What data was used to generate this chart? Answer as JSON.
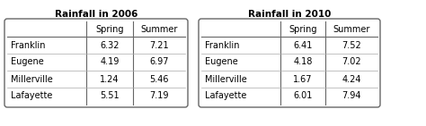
{
  "title_left": "Rainfall in 2006",
  "title_right": "Rainfall in 2010",
  "cities": [
    "Franklin",
    "Eugene",
    "Millerville",
    "Lafayette"
  ],
  "col_headers": [
    "Spring",
    "Summer"
  ],
  "data_2006": [
    [
      6.32,
      7.21
    ],
    [
      4.19,
      6.97
    ],
    [
      1.24,
      5.46
    ],
    [
      5.51,
      7.19
    ]
  ],
  "data_2010": [
    [
      6.41,
      7.52
    ],
    [
      4.18,
      7.02
    ],
    [
      1.67,
      4.24
    ],
    [
      6.01,
      7.94
    ]
  ],
  "bg_color": "#ffffff",
  "title_fontsize": 7.5,
  "header_fontsize": 7,
  "cell_fontsize": 7,
  "fig_width": 4.74,
  "fig_height": 1.41,
  "dpi": 100
}
